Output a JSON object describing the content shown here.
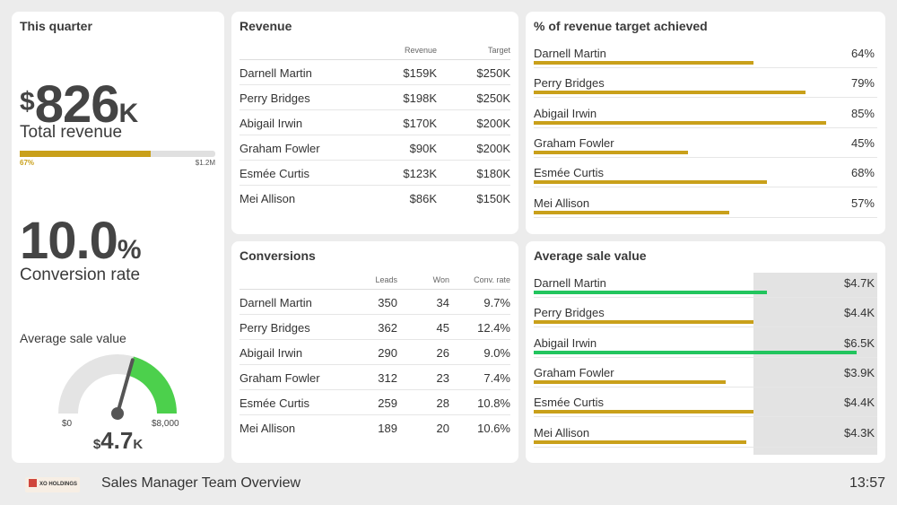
{
  "quarter": {
    "title": "This quarter",
    "revenue_currency": "$",
    "revenue_value": "826",
    "revenue_unit": "K",
    "revenue_label": "Total revenue",
    "progress": 0.67,
    "progress_label": "67%",
    "progress_max_label": "$1.2M",
    "conversion_value": "10.0",
    "conversion_unit": "%",
    "conversion_label": "Conversion rate",
    "avg_label": "Average sale value",
    "gauge_min": "$0",
    "gauge_max": "$8,000",
    "gauge_fraction": 0.5875,
    "gauge_currency": "$",
    "gauge_value": "4.7",
    "gauge_unit": "K"
  },
  "revenue": {
    "title": "Revenue",
    "col_revenue": "Revenue",
    "col_target": "Target",
    "rows": [
      {
        "name": "Darnell Martin",
        "revenue": "$159K",
        "target": "$250K"
      },
      {
        "name": "Perry Bridges",
        "revenue": "$198K",
        "target": "$250K"
      },
      {
        "name": "Abigail Irwin",
        "revenue": "$170K",
        "target": "$200K"
      },
      {
        "name": "Graham Fowler",
        "revenue": "$90K",
        "target": "$200K"
      },
      {
        "name": "Esmée Curtis",
        "revenue": "$123K",
        "target": "$180K"
      },
      {
        "name": "Mei Allison",
        "revenue": "$86K",
        "target": "$150K"
      }
    ]
  },
  "conversions": {
    "title": "Conversions",
    "col_leads": "Leads",
    "col_won": "Won",
    "col_rate": "Conv. rate",
    "rows": [
      {
        "name": "Darnell Martin",
        "leads": "350",
        "won": "34",
        "rate": "9.7%"
      },
      {
        "name": "Perry Bridges",
        "leads": "362",
        "won": "45",
        "rate": "12.4%"
      },
      {
        "name": "Abigail Irwin",
        "leads": "290",
        "won": "26",
        "rate": "9.0%"
      },
      {
        "name": "Graham Fowler",
        "leads": "312",
        "won": "23",
        "rate": "7.4%"
      },
      {
        "name": "Esmée Curtis",
        "leads": "259",
        "won": "28",
        "rate": "10.8%"
      },
      {
        "name": "Mei Allison",
        "leads": "189",
        "won": "20",
        "rate": "10.6%"
      }
    ]
  },
  "target": {
    "title": "% of revenue target achieved",
    "rows": [
      {
        "name": "Darnell Martin",
        "value": "64%",
        "fraction": 0.64
      },
      {
        "name": "Perry Bridges",
        "value": "79%",
        "fraction": 0.79
      },
      {
        "name": "Abigail Irwin",
        "value": "85%",
        "fraction": 0.85
      },
      {
        "name": "Graham Fowler",
        "value": "45%",
        "fraction": 0.45
      },
      {
        "name": "Esmée Curtis",
        "value": "68%",
        "fraction": 0.68
      },
      {
        "name": "Mei Allison",
        "value": "57%",
        "fraction": 0.57
      }
    ]
  },
  "avg_sale": {
    "title": "Average sale value",
    "rows": [
      {
        "name": "Darnell Martin",
        "value": "$4.7K",
        "fraction": 0.68,
        "color": "#22c55e"
      },
      {
        "name": "Perry Bridges",
        "value": "$4.4K",
        "fraction": 0.64,
        "color": "#c9a01a"
      },
      {
        "name": "Abigail Irwin",
        "value": "$6.5K",
        "fraction": 0.94,
        "color": "#22c55e"
      },
      {
        "name": "Graham Fowler",
        "value": "$3.9K",
        "fraction": 0.56,
        "color": "#c9a01a"
      },
      {
        "name": "Esmée Curtis",
        "value": "$4.4K",
        "fraction": 0.64,
        "color": "#c9a01a"
      },
      {
        "name": "Mei Allison",
        "value": "$4.3K",
        "fraction": 0.62,
        "color": "#c9a01a"
      }
    ]
  },
  "footer": {
    "logo_text": "XO HOLDINGS",
    "title": "Sales Manager Team Overview",
    "time": "13:57"
  },
  "colors": {
    "accent": "#c9a01a",
    "good": "#22c55e",
    "gauge_track": "#e4e4e4",
    "gauge_fill": "#4cd04c"
  }
}
